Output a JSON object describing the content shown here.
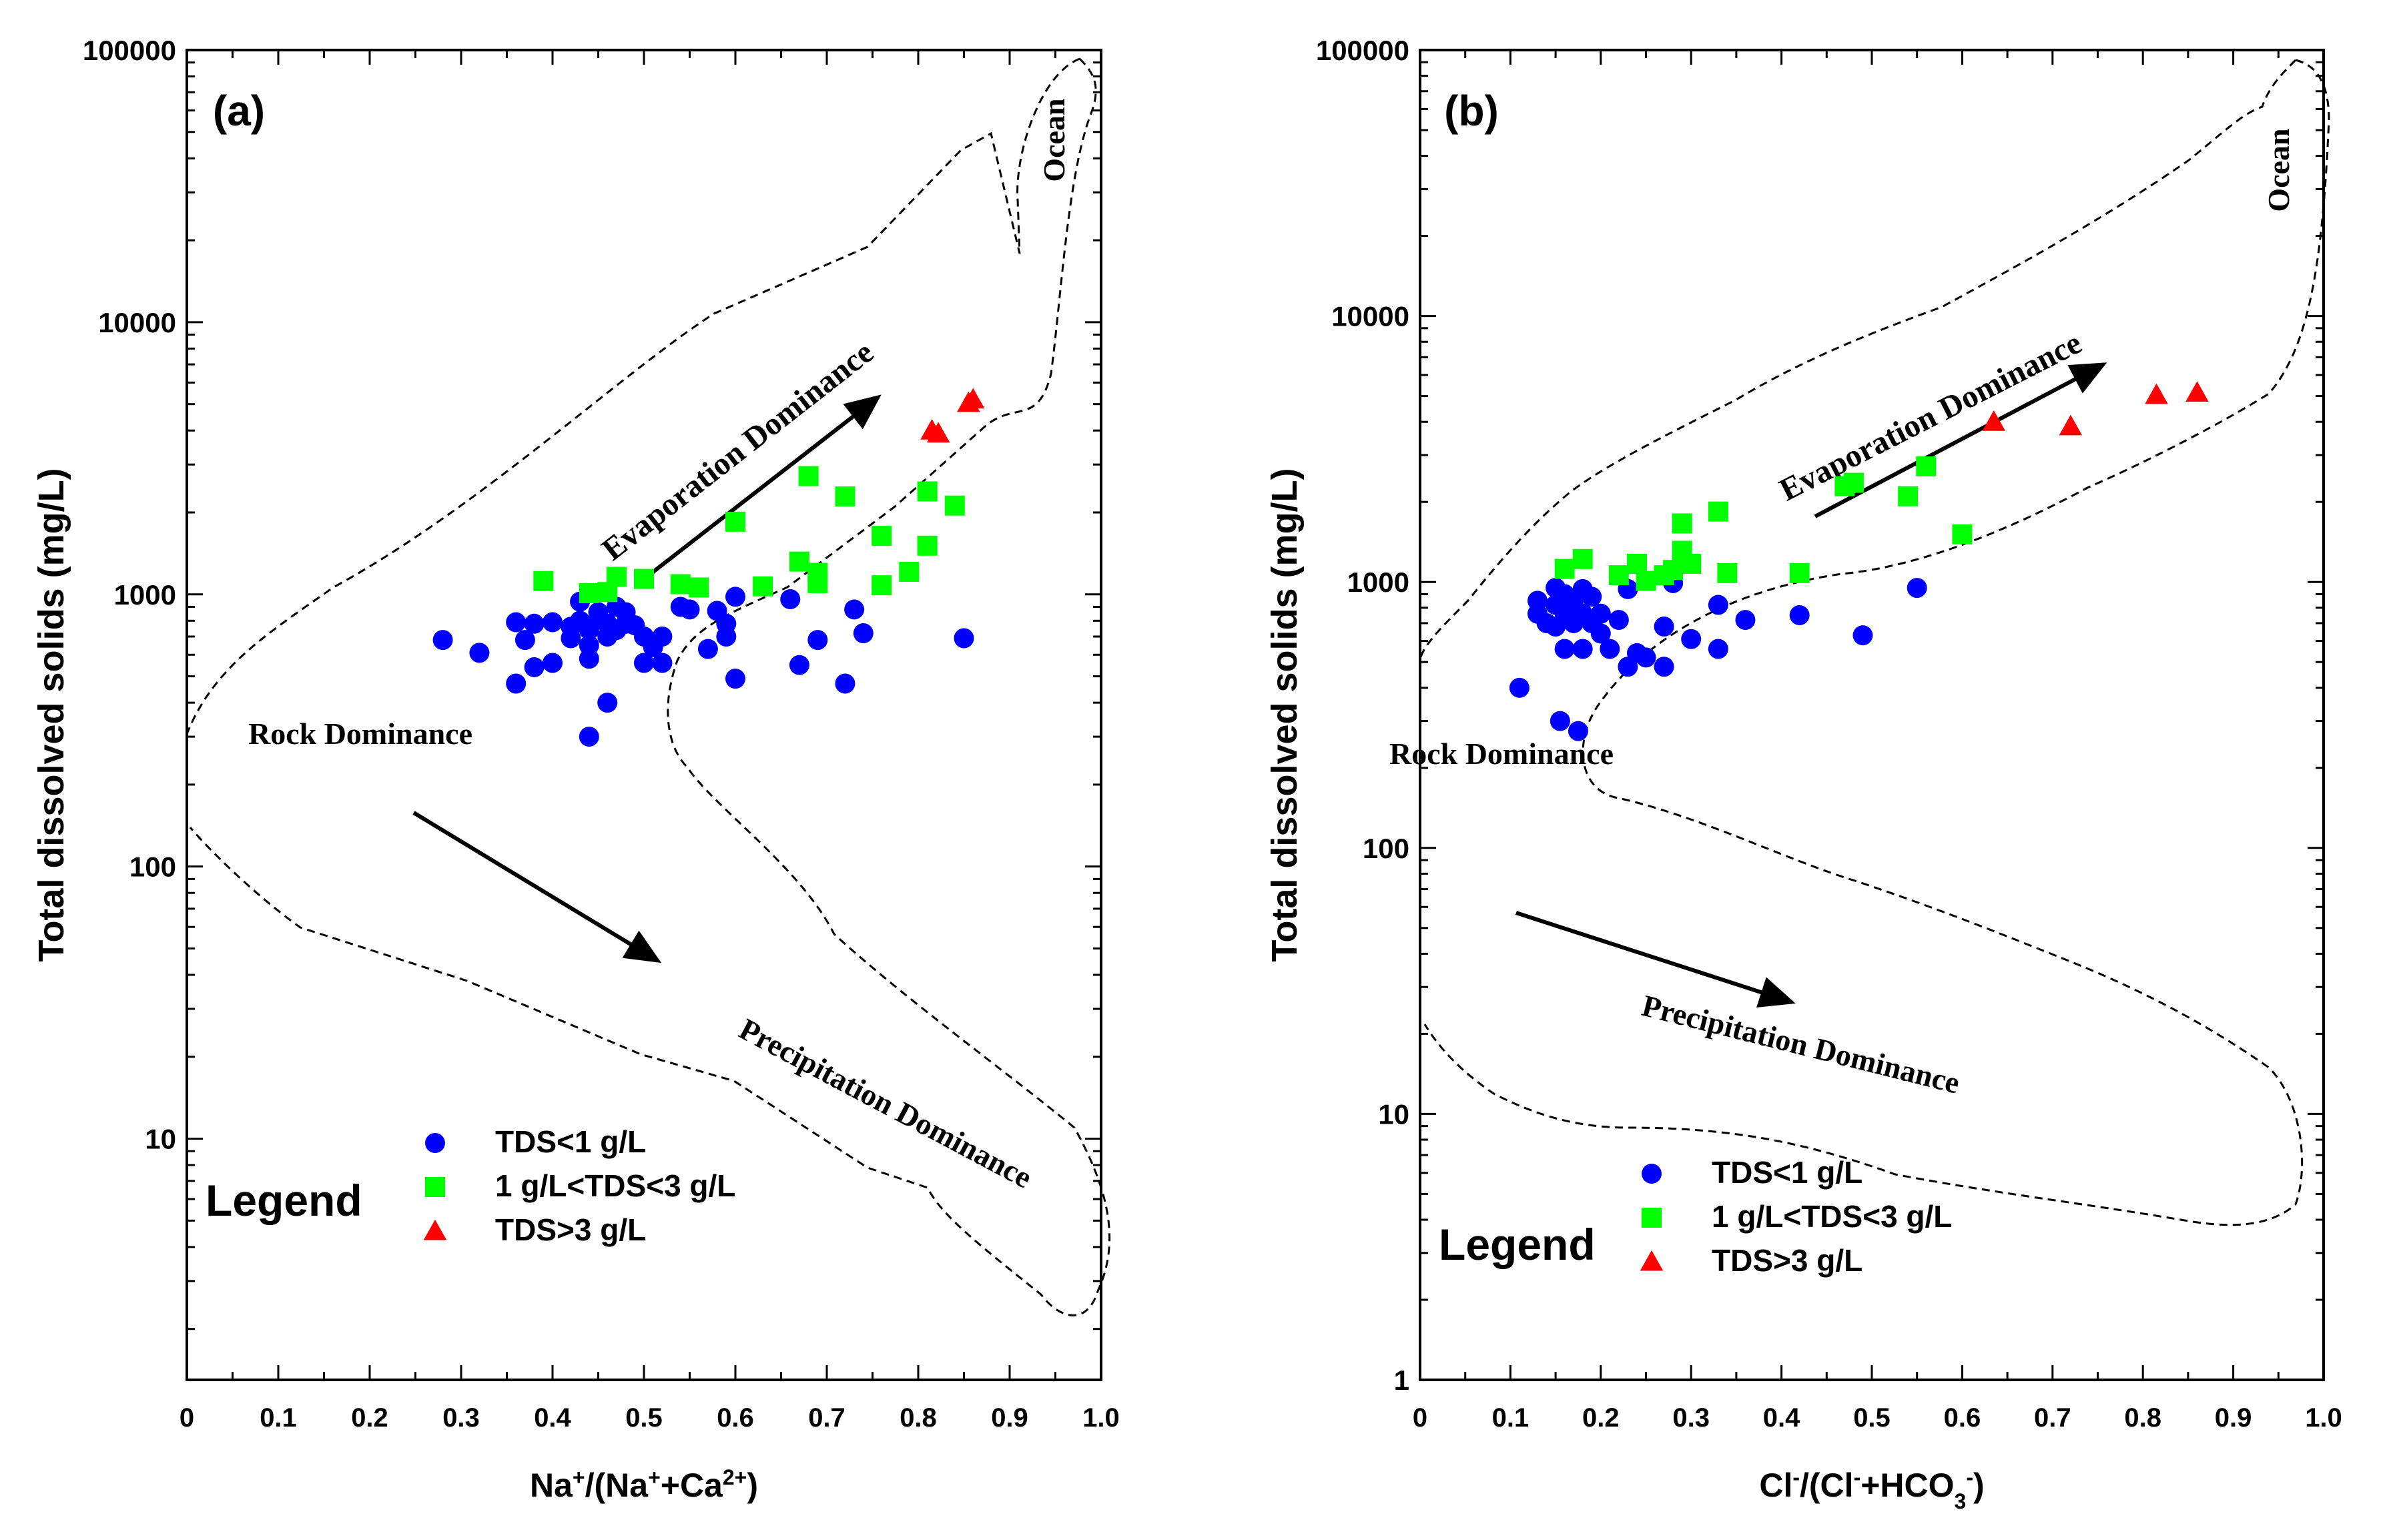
{
  "chart_data": [
    {
      "panel_label": "(a)",
      "type": "scatter",
      "xlabel": "Na+/(Na++Ca2+)",
      "xlabel_parts": [
        [
          "Na",
          ""
        ],
        [
          "+",
          "sup"
        ],
        [
          "/(Na",
          ""
        ],
        [
          "+",
          "sup"
        ],
        [
          "+Ca",
          ""
        ],
        [
          "2+",
          "sup"
        ],
        [
          ")",
          ""
        ]
      ],
      "ylabel": "Total dissolved solids (mg/L)",
      "xlim": [
        0,
        1.0
      ],
      "ylim": [
        1.3,
        100000
      ],
      "x_ticks": [
        0,
        0.1,
        0.2,
        0.3,
        0.4,
        0.5,
        0.6,
        0.7,
        0.8,
        0.9,
        1.0
      ],
      "x_tick_labels": [
        "0",
        "0.1",
        "0.2",
        "0.3",
        "0.4",
        "0.5",
        "0.6",
        "0.7",
        "0.8",
        "0.9",
        "1.0"
      ],
      "y_ticks": [
        10,
        100,
        1000,
        10000,
        100000
      ],
      "y_tick_labels": [
        "10",
        "100",
        "1000",
        "10000",
        "100000"
      ],
      "legend_title": "Legend",
      "series": [
        {
          "name": "TDS<1 g/L",
          "marker": "circle",
          "color": "#0000ff",
          "points": [
            [
              0.28,
              680
            ],
            [
              0.32,
              610
            ],
            [
              0.36,
              790
            ],
            [
              0.37,
              680
            ],
            [
              0.36,
              470
            ],
            [
              0.38,
              540
            ],
            [
              0.38,
              780
            ],
            [
              0.4,
              560
            ],
            [
              0.4,
              790
            ],
            [
              0.42,
              760
            ],
            [
              0.42,
              690
            ],
            [
              0.43,
              800
            ],
            [
              0.43,
              940
            ],
            [
              0.44,
              740
            ],
            [
              0.44,
              580
            ],
            [
              0.44,
              650
            ],
            [
              0.45,
              860
            ],
            [
              0.45,
              820
            ],
            [
              0.46,
              700
            ],
            [
              0.46,
              780
            ],
            [
              0.47,
              900
            ],
            [
              0.47,
              740
            ],
            [
              0.48,
              780
            ],
            [
              0.48,
              860
            ],
            [
              0.49,
              770
            ],
            [
              0.5,
              700
            ],
            [
              0.5,
              560
            ],
            [
              0.51,
              640
            ],
            [
              0.52,
              560
            ],
            [
              0.52,
              700
            ],
            [
              0.54,
              900
            ],
            [
              0.55,
              880
            ],
            [
              0.57,
              630
            ],
            [
              0.58,
              870
            ],
            [
              0.59,
              780
            ],
            [
              0.59,
              700
            ],
            [
              0.6,
              980
            ],
            [
              0.6,
              490
            ],
            [
              0.66,
              960
            ],
            [
              0.67,
              550
            ],
            [
              0.69,
              680
            ],
            [
              0.72,
              470
            ],
            [
              0.73,
              880
            ],
            [
              0.74,
              720
            ],
            [
              0.85,
              690
            ],
            [
              0.46,
              400
            ],
            [
              0.44,
              300
            ]
          ]
        },
        {
          "name": "1 g/L<TDS<3 g/L",
          "marker": "square",
          "color": "#00ff00",
          "points": [
            [
              0.39,
              1120
            ],
            [
              0.44,
              1010
            ],
            [
              0.46,
              1020
            ],
            [
              0.47,
              1160
            ],
            [
              0.5,
              1140
            ],
            [
              0.54,
              1090
            ],
            [
              0.56,
              1060
            ],
            [
              0.6,
              1850
            ],
            [
              0.63,
              1070
            ],
            [
              0.67,
              1320
            ],
            [
              0.68,
              2720
            ],
            [
              0.69,
              1100
            ],
            [
              0.72,
              2290
            ],
            [
              0.76,
              1640
            ],
            [
              0.76,
              1080
            ],
            [
              0.79,
              1210
            ],
            [
              0.81,
              1510
            ],
            [
              0.81,
              2390
            ],
            [
              0.84,
              2120
            ],
            [
              0.69,
              1200
            ]
          ]
        },
        {
          "name": "TDS>3 g/L",
          "marker": "triangle",
          "color": "#ff0000",
          "points": [
            [
              0.815,
              4000
            ],
            [
              0.822,
              3900
            ],
            [
              0.855,
              5050
            ],
            [
              0.86,
              5200
            ]
          ]
        }
      ],
      "annotations": [
        "Ocean",
        "Evaporation Dominance",
        "Rock Dominance",
        "Precipitation Dominance"
      ]
    },
    {
      "panel_label": "(b)",
      "type": "scatter",
      "xlabel": "Cl-/(Cl-+HCO3-)",
      "xlabel_parts": [
        [
          "Cl",
          ""
        ],
        [
          "-",
          "sup"
        ],
        [
          "/(Cl",
          ""
        ],
        [
          "-",
          "sup"
        ],
        [
          "+HCO",
          ""
        ],
        [
          "3",
          "sub"
        ],
        [
          "-",
          "sup"
        ],
        [
          ")",
          ""
        ]
      ],
      "ylabel": "Total dissolved solids (mg/L)",
      "xlim": [
        0,
        1.0
      ],
      "ylim": [
        1,
        100000
      ],
      "x_ticks": [
        0,
        0.1,
        0.2,
        0.3,
        0.4,
        0.5,
        0.6,
        0.7,
        0.8,
        0.9,
        1.0
      ],
      "x_tick_labels": [
        "0",
        "0.1",
        "0.2",
        "0.3",
        "0.4",
        "0.5",
        "0.6",
        "0.7",
        "0.8",
        "0.9",
        "1.0"
      ],
      "y_ticks": [
        1,
        10,
        100,
        1000,
        10000,
        100000
      ],
      "y_tick_labels": [
        "1",
        "10",
        "100",
        "1000",
        "10000",
        "100000"
      ],
      "legend_title": "Legend",
      "series": [
        {
          "name": "TDS<1 g/L",
          "marker": "circle",
          "color": "#0000ff",
          "points": [
            [
              0.11,
              400
            ],
            [
              0.13,
              850
            ],
            [
              0.13,
              760
            ],
            [
              0.14,
              700
            ],
            [
              0.15,
              950
            ],
            [
              0.15,
              820
            ],
            [
              0.15,
              680
            ],
            [
              0.16,
              900
            ],
            [
              0.16,
              760
            ],
            [
              0.16,
              560
            ],
            [
              0.17,
              700
            ],
            [
              0.17,
              820
            ],
            [
              0.18,
              940
            ],
            [
              0.18,
              760
            ],
            [
              0.18,
              560
            ],
            [
              0.19,
              700
            ],
            [
              0.19,
              880
            ],
            [
              0.2,
              760
            ],
            [
              0.2,
              640
            ],
            [
              0.21,
              560
            ],
            [
              0.22,
              720
            ],
            [
              0.23,
              940
            ],
            [
              0.23,
              480
            ],
            [
              0.24,
              540
            ],
            [
              0.25,
              520
            ],
            [
              0.27,
              680
            ],
            [
              0.27,
              480
            ],
            [
              0.28,
              990
            ],
            [
              0.3,
              610
            ],
            [
              0.33,
              820
            ],
            [
              0.33,
              560
            ],
            [
              0.36,
              720
            ],
            [
              0.42,
              750
            ],
            [
              0.49,
              630
            ],
            [
              0.55,
              950
            ],
            [
              0.155,
              300
            ],
            [
              0.175,
              275
            ]
          ]
        },
        {
          "name": "1 g/L<TDS<3 g/L",
          "marker": "square",
          "color": "#00ff00",
          "points": [
            [
              0.16,
              1120
            ],
            [
              0.18,
              1220
            ],
            [
              0.22,
              1060
            ],
            [
              0.24,
              1170
            ],
            [
              0.25,
              1010
            ],
            [
              0.27,
              1060
            ],
            [
              0.28,
              1110
            ],
            [
              0.29,
              1660
            ],
            [
              0.29,
              1310
            ],
            [
              0.3,
              1170
            ],
            [
              0.33,
              1840
            ],
            [
              0.34,
              1080
            ],
            [
              0.42,
              1080
            ],
            [
              0.47,
              2290
            ],
            [
              0.48,
              2360
            ],
            [
              0.54,
              2100
            ],
            [
              0.56,
              2720
            ],
            [
              0.6,
              1510
            ]
          ]
        },
        {
          "name": "TDS>3 g/L",
          "marker": "triangle",
          "color": "#ff0000",
          "points": [
            [
              0.635,
              4000
            ],
            [
              0.72,
              3850
            ],
            [
              0.815,
              5050
            ],
            [
              0.86,
              5150
            ]
          ]
        }
      ],
      "annotations": [
        "Ocean",
        "Evaporation Dominance",
        "Rock Dominance",
        "Precipitation Dominance"
      ]
    }
  ]
}
